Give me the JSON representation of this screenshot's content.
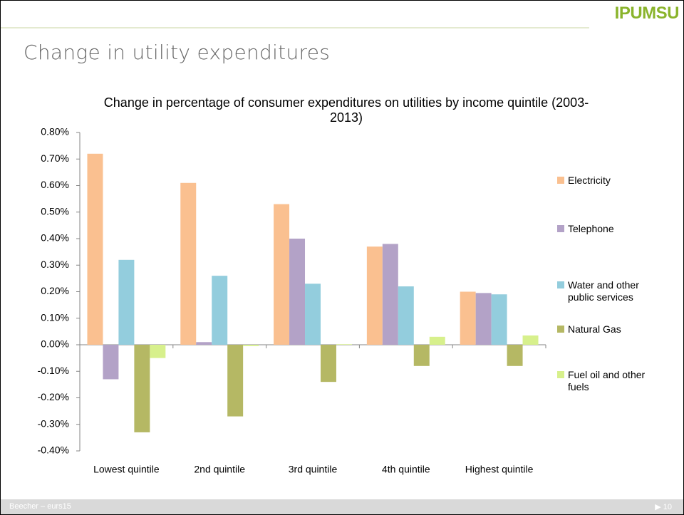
{
  "logo": "IPUMSU",
  "slide_title": "Change in utility expenditures",
  "footer": "Beecher – eurs15",
  "page_number": "10",
  "chart_data": {
    "type": "bar",
    "title": "Change in percentage of consumer expenditures on utilities by income quintile (2003-2013)",
    "categories": [
      "Lowest quintile",
      "2nd quintile",
      "3rd quintile",
      "4th quintile",
      "Highest quintile"
    ],
    "series": [
      {
        "name": "Electricity",
        "color": "#fac090",
        "values": [
          0.72,
          0.61,
          0.53,
          0.37,
          0.2
        ]
      },
      {
        "name": "Telephone",
        "color": "#b3a2c7",
        "values": [
          -0.13,
          0.01,
          0.4,
          0.38,
          0.195
        ]
      },
      {
        "name": "Water and other public services",
        "color": "#93cddd",
        "values": [
          0.32,
          0.26,
          0.23,
          0.22,
          0.19
        ]
      },
      {
        "name": "Natural Gas",
        "color": "#b5b864",
        "values": [
          -0.33,
          -0.27,
          -0.14,
          -0.08,
          -0.08
        ]
      },
      {
        "name": "Fuel oil and other fuels",
        "color": "#d7f08c",
        "values": [
          -0.05,
          -0.005,
          0.002,
          0.03,
          0.035
        ]
      }
    ],
    "ylim": [
      -0.4,
      0.8
    ],
    "yticks": [
      {
        "value": -0.4,
        "label": "-0.40%"
      },
      {
        "value": -0.3,
        "label": "-0.30%"
      },
      {
        "value": -0.2,
        "label": "-0.20%"
      },
      {
        "value": -0.1,
        "label": "-0.10%"
      },
      {
        "value": 0,
        "label": "0.00%"
      },
      {
        "value": 0.1,
        "label": "0.10%"
      },
      {
        "value": 0.2,
        "label": "0.20%"
      },
      {
        "value": 0.3,
        "label": "0.30%"
      },
      {
        "value": 0.4,
        "label": "0.40%"
      },
      {
        "value": 0.5,
        "label": "0.50%"
      },
      {
        "value": 0.6,
        "label": "0.60%"
      },
      {
        "value": 0.7,
        "label": "0.70%"
      },
      {
        "value": 0.8,
        "label": "0.80%"
      }
    ],
    "grid": false,
    "legend": "right"
  }
}
